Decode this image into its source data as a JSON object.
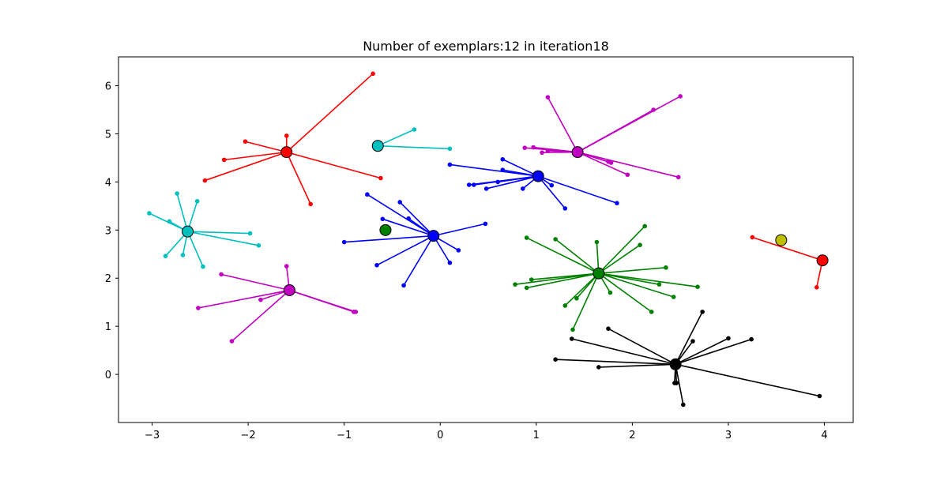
{
  "chart_data": {
    "type": "scatter",
    "title": "Number of exemplars:12 in iteration18",
    "xlabel": "",
    "ylabel": "",
    "xlim": [
      -3.35,
      4.3
    ],
    "ylim": [
      -1.0,
      6.6
    ],
    "xticks": [
      -3,
      -2,
      -1,
      0,
      1,
      2,
      3,
      4
    ],
    "yticks": [
      0,
      1,
      2,
      3,
      4,
      5,
      6
    ],
    "grid": false,
    "legend": "none",
    "clusters": [
      {
        "color": "#ff0000",
        "exemplar": [
          -1.6,
          4.62
        ],
        "members": [
          [
            -0.7,
            6.25
          ],
          [
            -2.03,
            4.84
          ],
          [
            -2.25,
            4.46
          ],
          [
            -2.45,
            4.03
          ],
          [
            -1.6,
            4.96
          ],
          [
            -0.62,
            4.08
          ],
          [
            -1.35,
            3.54
          ]
        ]
      },
      {
        "color": "#00bfbf",
        "exemplar": [
          -0.65,
          4.75
        ],
        "members": [
          [
            -0.27,
            5.09
          ],
          [
            0.1,
            4.69
          ]
        ]
      },
      {
        "color": "#bf00bf",
        "exemplar": [
          1.43,
          4.62
        ],
        "members": [
          [
            1.12,
            5.76
          ],
          [
            2.22,
            5.5
          ],
          [
            2.5,
            5.78
          ],
          [
            0.88,
            4.71
          ],
          [
            0.97,
            4.72
          ],
          [
            1.06,
            4.61
          ],
          [
            1.12,
            4.65
          ],
          [
            1.75,
            4.42
          ],
          [
            1.78,
            4.4
          ],
          [
            1.95,
            4.15
          ],
          [
            2.48,
            4.1
          ]
        ]
      },
      {
        "color": "#0000ff",
        "exemplar": [
          1.02,
          4.12
        ],
        "members": [
          [
            0.1,
            4.36
          ],
          [
            0.65,
            4.47
          ],
          [
            0.65,
            4.25
          ],
          [
            0.3,
            3.94
          ],
          [
            0.35,
            3.94
          ],
          [
            0.6,
            4.0
          ],
          [
            0.48,
            3.86
          ],
          [
            0.86,
            3.86
          ],
          [
            1.16,
            3.93
          ],
          [
            1.3,
            3.45
          ],
          [
            1.84,
            3.56
          ]
        ]
      },
      {
        "color": "#00bfbf",
        "exemplar": [
          -2.63,
          2.97
        ],
        "members": [
          [
            -3.03,
            3.35
          ],
          [
            -2.74,
            3.76
          ],
          [
            -2.53,
            3.6
          ],
          [
            -2.82,
            3.18
          ],
          [
            -1.98,
            2.93
          ],
          [
            -1.89,
            2.68
          ],
          [
            -2.86,
            2.46
          ],
          [
            -2.68,
            2.48
          ],
          [
            -2.47,
            2.24
          ]
        ]
      },
      {
        "color": "#0000ff",
        "exemplar": [
          -0.07,
          2.88
        ],
        "members": [
          [
            -0.76,
            3.74
          ],
          [
            -0.42,
            3.58
          ],
          [
            -0.6,
            3.23
          ],
          [
            -0.33,
            3.24
          ],
          [
            0.47,
            3.13
          ],
          [
            -1.0,
            2.75
          ],
          [
            0.19,
            2.58
          ],
          [
            -0.66,
            2.27
          ],
          [
            0.1,
            2.32
          ],
          [
            -0.38,
            1.85
          ]
        ]
      },
      {
        "color": "#008000",
        "exemplar": [
          -0.57,
          3.0
        ],
        "members": []
      },
      {
        "color": "#bf00bf",
        "exemplar": [
          -1.57,
          1.75
        ],
        "members": [
          [
            -1.6,
            2.25
          ],
          [
            -2.28,
            2.08
          ],
          [
            -2.52,
            1.38
          ],
          [
            -1.87,
            1.55
          ],
          [
            -0.9,
            1.3
          ],
          [
            -0.88,
            1.3
          ],
          [
            -2.17,
            0.69
          ]
        ]
      },
      {
        "color": "#008000",
        "exemplar": [
          1.65,
          2.1
        ],
        "members": [
          [
            0.9,
            2.84
          ],
          [
            1.2,
            2.81
          ],
          [
            1.63,
            2.75
          ],
          [
            2.13,
            3.08
          ],
          [
            2.08,
            2.69
          ],
          [
            2.35,
            2.22
          ],
          [
            0.78,
            1.87
          ],
          [
            0.95,
            1.97
          ],
          [
            0.9,
            1.8
          ],
          [
            2.28,
            1.87
          ],
          [
            2.68,
            1.82
          ],
          [
            1.3,
            1.43
          ],
          [
            1.42,
            1.58
          ],
          [
            1.77,
            1.7
          ],
          [
            2.43,
            1.61
          ],
          [
            2.2,
            1.3
          ],
          [
            1.38,
            0.93
          ]
        ]
      },
      {
        "color": "#bfbf00",
        "exemplar": [
          3.55,
          2.79
        ],
        "members": []
      },
      {
        "color": "#ff0000",
        "exemplar": [
          3.98,
          2.37
        ],
        "members": [
          [
            3.25,
            2.85
          ],
          [
            3.92,
            1.81
          ]
        ]
      },
      {
        "color": "#000000",
        "exemplar": [
          2.45,
          0.21
        ],
        "members": [
          [
            2.73,
            1.3
          ],
          [
            1.75,
            0.95
          ],
          [
            1.37,
            0.74
          ],
          [
            2.63,
            0.69
          ],
          [
            3.0,
            0.75
          ],
          [
            3.24,
            0.73
          ],
          [
            1.2,
            0.31
          ],
          [
            1.65,
            0.15
          ],
          [
            2.44,
            -0.18
          ],
          [
            2.46,
            -0.18
          ],
          [
            2.53,
            -0.63
          ],
          [
            3.95,
            -0.45
          ]
        ]
      }
    ]
  }
}
